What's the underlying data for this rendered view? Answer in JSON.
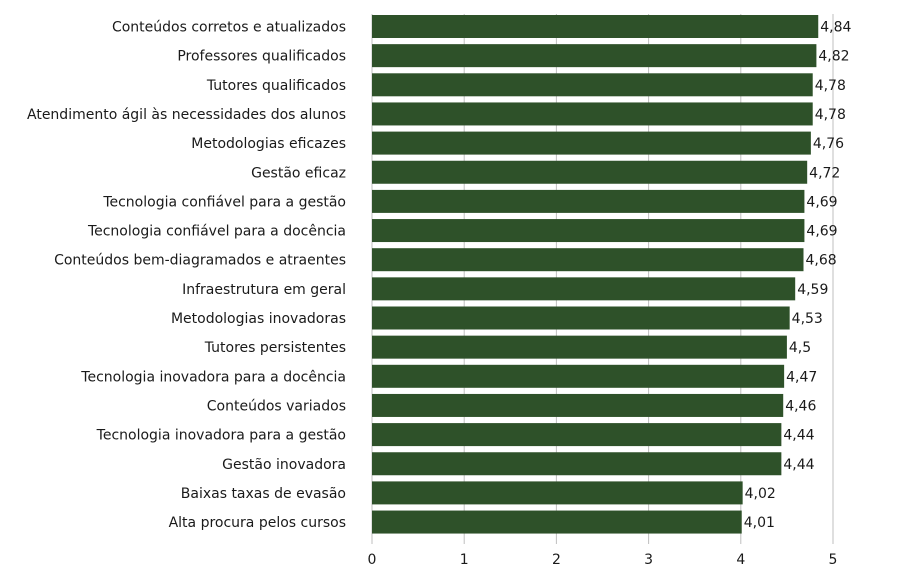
{
  "chart_data": {
    "type": "bar",
    "orientation": "horizontal",
    "categories": [
      "Conteúdos corretos e atualizados",
      "Professores qualificados",
      "Tutores qualificados",
      "Atendimento ágil às necessidades dos alunos",
      "Metodologias eficazes",
      "Gestão eficaz",
      "Tecnologia confiável para a gestão",
      "Tecnologia confiável para a docência",
      "Conteúdos bem-diagramados e atraentes",
      "Infraestrutura em geral",
      "Metodologias inovadoras",
      "Tutores persistentes",
      "Tecnologia inovadora para a docência",
      "Conteúdos variados",
      "Tecnologia inovadora para a gestão",
      "Gestão inovadora",
      "Baixas taxas de evasão",
      "Alta procura pelos cursos"
    ],
    "values": [
      4.84,
      4.82,
      4.78,
      4.78,
      4.76,
      4.72,
      4.69,
      4.69,
      4.68,
      4.59,
      4.53,
      4.5,
      4.47,
      4.46,
      4.44,
      4.44,
      4.02,
      4.01
    ],
    "value_labels": [
      "4,84",
      "4,82",
      "4,78",
      "4,78",
      "4,76",
      "4,72",
      "4,69",
      "4,69",
      "4,68",
      "4,59",
      "4,53",
      "4,5",
      "4,47",
      "4,46",
      "4,44",
      "4,44",
      "4,02",
      "4,01"
    ],
    "xlim": [
      0,
      5
    ],
    "xticks": [
      "0",
      "1",
      "2",
      "3",
      "4",
      "5"
    ],
    "grid": true,
    "bar_color": "#2e5129"
  }
}
